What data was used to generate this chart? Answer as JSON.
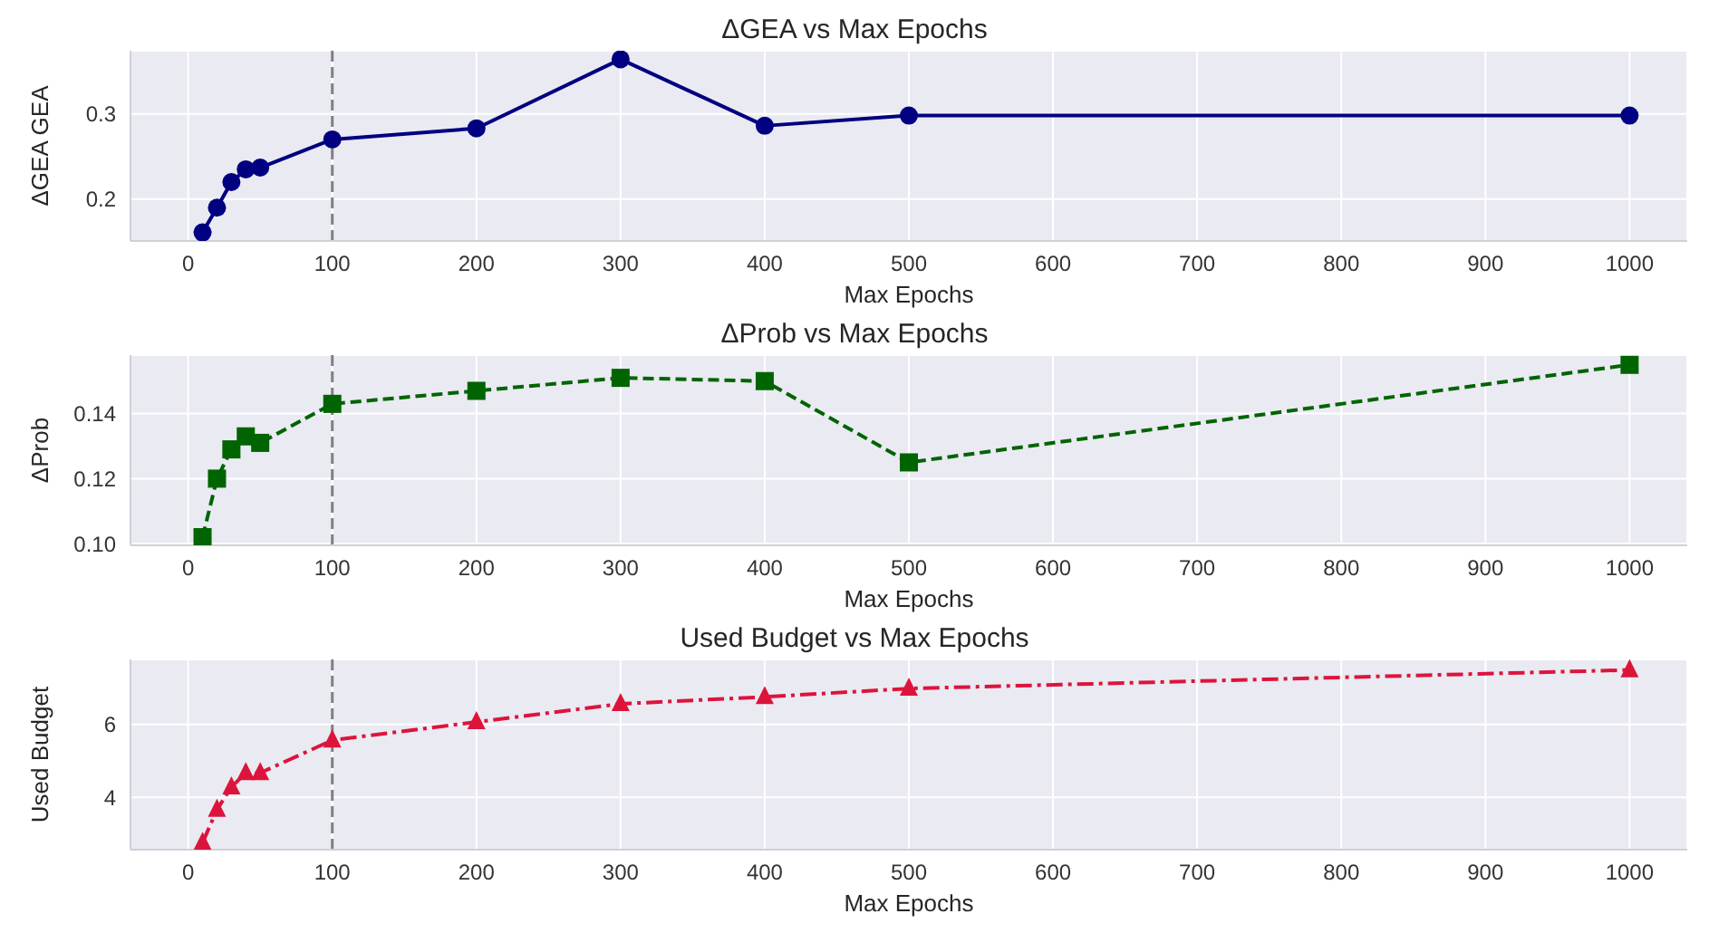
{
  "chart_data": [
    {
      "type": "line",
      "title": "ΔGEA vs Max Epochs",
      "xlabel": "Max Epochs",
      "ylabel": "ΔGEA  GEA",
      "x": [
        10,
        20,
        30,
        40,
        50,
        100,
        200,
        300,
        400,
        500,
        1000
      ],
      "series": [
        {
          "color": "#000080",
          "values": [
            0.161,
            0.19,
            0.22,
            0.235,
            0.237,
            0.27,
            0.283,
            0.364,
            0.286,
            0.298,
            0.298
          ]
        }
      ],
      "xlim": [
        -40,
        1040
      ],
      "xticks": [
        0,
        100,
        200,
        300,
        400,
        500,
        600,
        700,
        800,
        900,
        1000
      ],
      "ylim": [
        0.151,
        0.374
      ],
      "yticks": [
        0.2,
        0.3
      ],
      "grid": true,
      "marker": "circle",
      "line_style": "solid",
      "ref_lines": [
        {
          "axis": "x",
          "value": 100,
          "color": "#808080",
          "line_style": "dashed"
        }
      ]
    },
    {
      "type": "line",
      "title": "ΔProb vs Max Epochs",
      "xlabel": "Max Epochs",
      "ylabel": "ΔProb",
      "x": [
        10,
        20,
        30,
        40,
        50,
        100,
        200,
        300,
        400,
        500,
        1000
      ],
      "series": [
        {
          "color": "#006400",
          "values": [
            0.102,
            0.12,
            0.129,
            0.133,
            0.131,
            0.143,
            0.147,
            0.151,
            0.15,
            0.125,
            0.155
          ]
        }
      ],
      "xlim": [
        -40,
        1040
      ],
      "xticks": [
        0,
        100,
        200,
        300,
        400,
        500,
        600,
        700,
        800,
        900,
        1000
      ],
      "ylim": [
        0.0995,
        0.158
      ],
      "yticks": [
        {
          "value": 0.1,
          "label": "0.10"
        },
        0.12,
        0.14
      ],
      "grid": true,
      "marker": "square",
      "line_style": "dashed",
      "ref_lines": [
        {
          "axis": "x",
          "value": 100,
          "color": "#808080",
          "line_style": "dashed"
        }
      ]
    },
    {
      "type": "line",
      "title": "Used Budget vs Max Epochs",
      "xlabel": "Max Epochs",
      "ylabel": "Used Budget",
      "x": [
        10,
        20,
        30,
        40,
        50,
        100,
        200,
        300,
        400,
        500,
        1000
      ],
      "series": [
        {
          "color": "#dc143c",
          "values": [
            2.75,
            3.66,
            4.28,
            4.67,
            4.67,
            5.57,
            6.07,
            6.57,
            6.76,
            6.99,
            7.5
          ]
        }
      ],
      "xlim": [
        -40,
        1040
      ],
      "xticks": [
        0,
        100,
        200,
        300,
        400,
        500,
        600,
        700,
        800,
        900,
        1000
      ],
      "ylim": [
        2.56,
        7.79
      ],
      "yticks": [
        4,
        6
      ],
      "grid": true,
      "marker": "triangle",
      "line_style": "dashdot",
      "ref_lines": [
        {
          "axis": "x",
          "value": 100,
          "color": "#808080",
          "line_style": "dashed"
        }
      ]
    }
  ]
}
